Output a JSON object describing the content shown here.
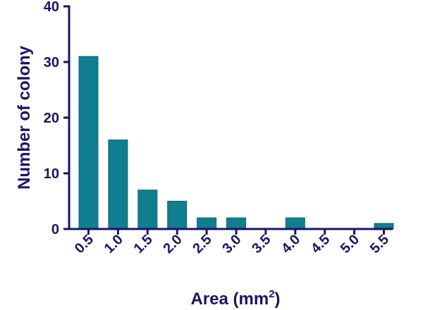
{
  "colors": {
    "bar": "#0f7f8f",
    "bar_edge": "#0a6571",
    "axis": "#1b1464",
    "text": "#1b1464"
  },
  "chart_data": {
    "type": "bar",
    "categories": [
      "0.5",
      "1.0",
      "1.5",
      "2.0",
      "2.5",
      "3.0",
      "3.5",
      "4.0",
      "4.5",
      "5.0",
      "5.5"
    ],
    "values": [
      31,
      16,
      7,
      5,
      2,
      2,
      0,
      2,
      0,
      0,
      1
    ],
    "ylim": [
      0,
      40
    ],
    "yticks": [
      0,
      10,
      20,
      30,
      40
    ],
    "xlabel": "Area (mm",
    "xlabel_superscript": "2",
    "xlabel_suffix": ")",
    "ylabel": "Number of colony",
    "grid": false
  }
}
